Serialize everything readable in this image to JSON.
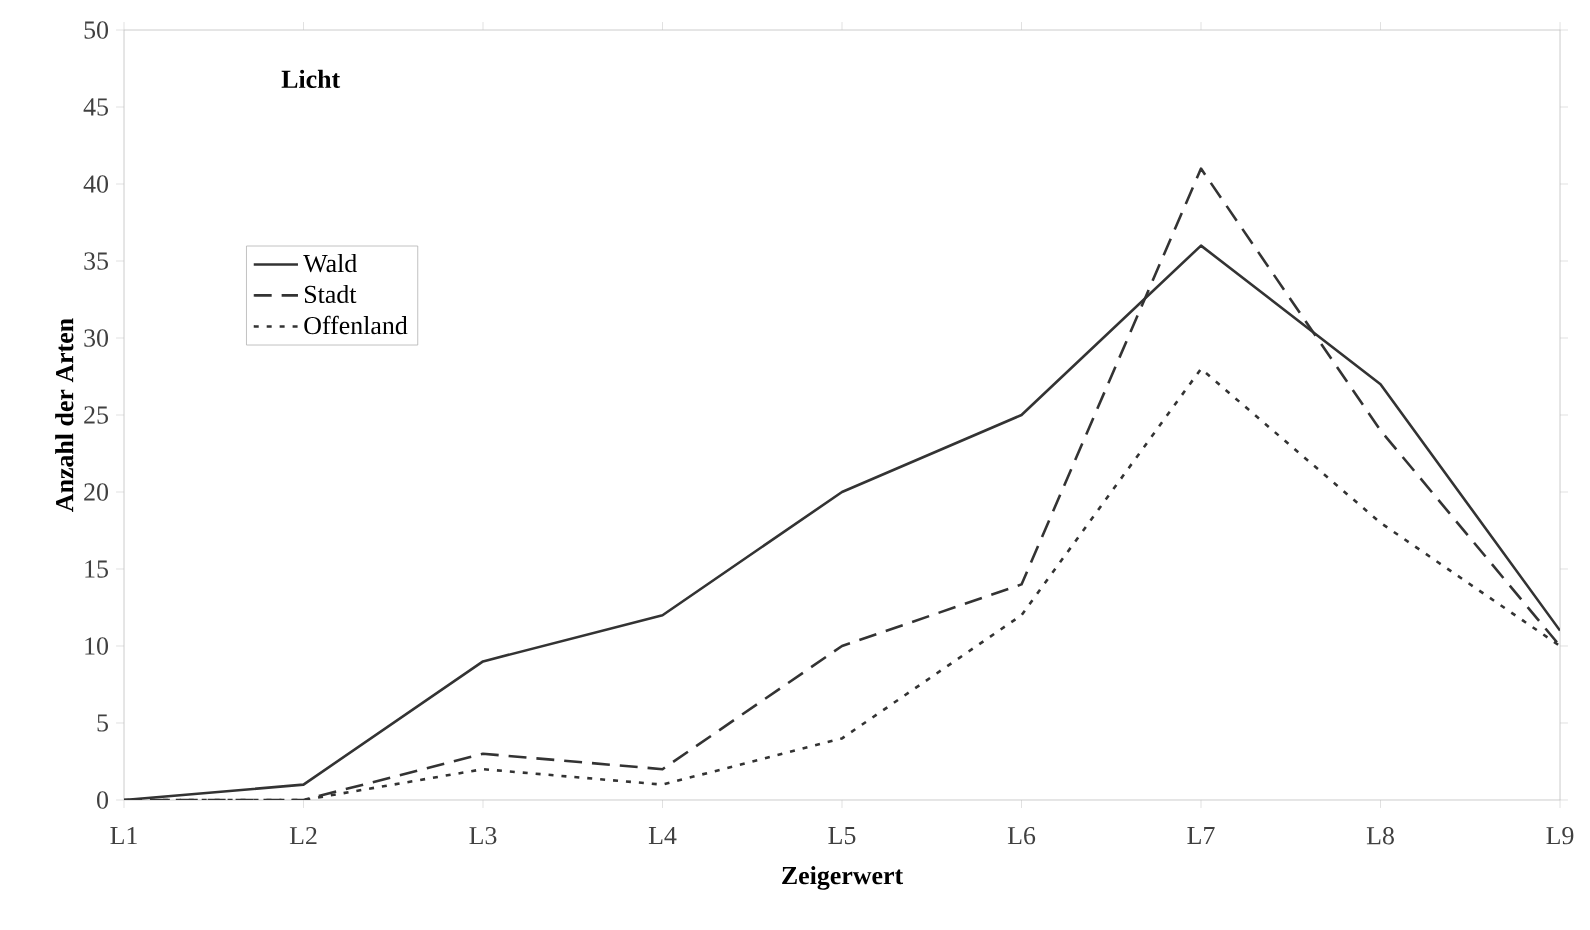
{
  "chart_data": {
    "type": "line",
    "title": "Licht",
    "xlabel": "Zeigerwert",
    "ylabel": "Anzahl der Arten",
    "categories": [
      "L1",
      "L2",
      "L3",
      "L4",
      "L5",
      "L6",
      "L7",
      "L8",
      "L9"
    ],
    "series": [
      {
        "name": "Wald",
        "color": "#333333",
        "line_style": "solid",
        "values": [
          0,
          1,
          9,
          12,
          20,
          25,
          36,
          27,
          11
        ]
      },
      {
        "name": "Stadt",
        "color": "#333333",
        "line_style": "dashed",
        "values": [
          0,
          0,
          3,
          2,
          10,
          14,
          41,
          24,
          10
        ]
      },
      {
        "name": "Offenland",
        "color": "#333333",
        "line_style": "dotted",
        "values": [
          0,
          0,
          2,
          1,
          4,
          12,
          28,
          18,
          10
        ]
      }
    ],
    "ylim": [
      0,
      50
    ],
    "yticks": [
      0,
      5,
      10,
      15,
      20,
      25,
      30,
      35,
      40,
      45,
      50
    ],
    "grid": false,
    "legend": "top left"
  }
}
